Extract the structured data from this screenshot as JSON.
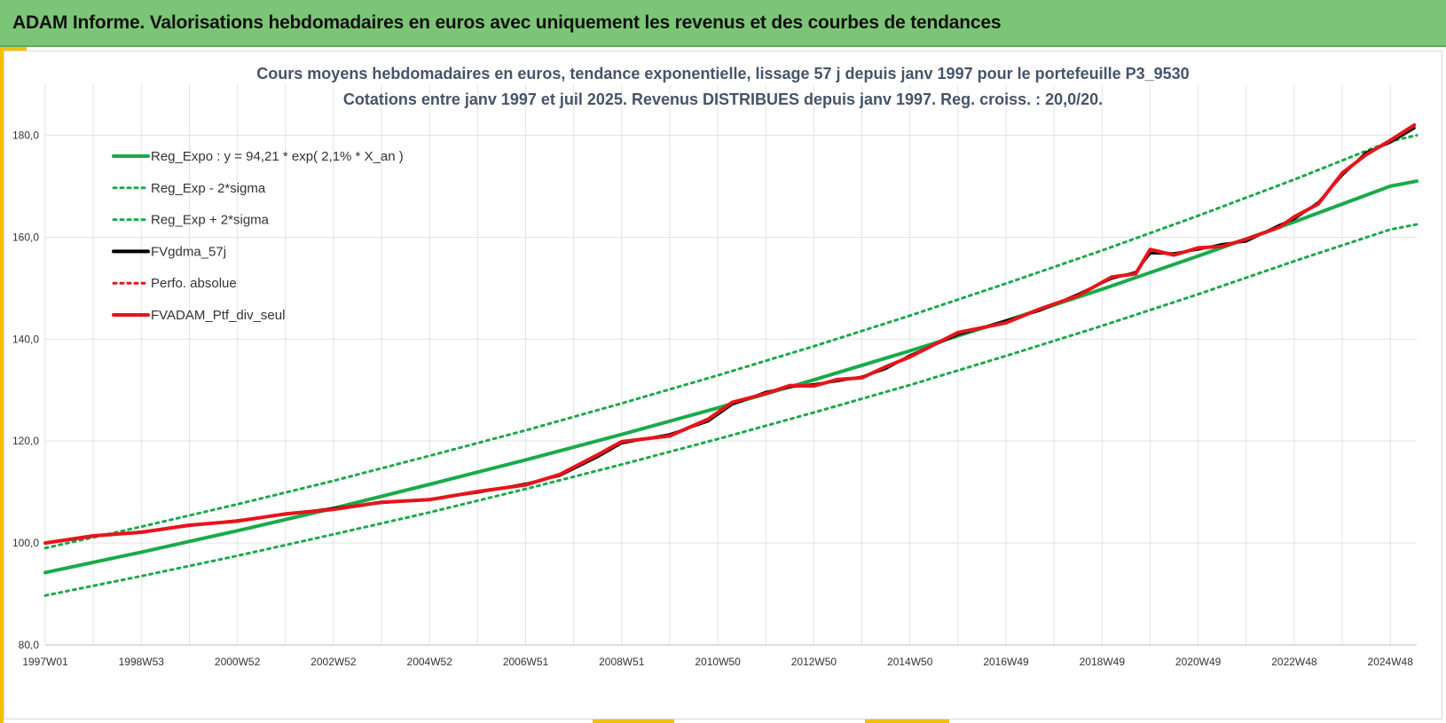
{
  "header": {
    "title": "ADAM Informe. Valorisations hebdomadaires en euros avec uniquement les revenus et des courbes de tendances"
  },
  "colors": {
    "header_bg": "#7cc576",
    "accent": "#f2c000",
    "trend": "#1aaa4a",
    "smooth": "#000000",
    "portfolio": "#e8141b"
  },
  "chart_data": {
    "type": "line",
    "title_lines": [
      "Cours moyens hebdomadaires  en euros, tendance exponentielle, lissage 57 j depuis janv 1997 pour le portefeuille P3_9530",
      "Cotations entre janv 1997 et juil 2025. Revenus DISTRIBUES depuis janv 1997. Reg. croiss. : 20,0/20."
    ],
    "x_tick_labels": [
      "1997W01",
      "1998W53",
      "2000W52",
      "2002W52",
      "2004W52",
      "2006W51",
      "2008W51",
      "2010W50",
      "2012W50",
      "2014W50",
      "2016W49",
      "2018W49",
      "2020W49",
      "2022W48",
      "2024W48"
    ],
    "x_tick_years": [
      1997.0,
      1999.0,
      2001.0,
      2003.0,
      2005.0,
      2007.0,
      2009.0,
      2011.0,
      2013.0,
      2015.0,
      2017.0,
      2019.0,
      2021.0,
      2023.0,
      2025.0
    ],
    "xlim": [
      1997.0,
      2025.55
    ],
    "y_tick_labels": [
      "80,0",
      "100,0",
      "120,0",
      "140,0",
      "160,0",
      "180,0"
    ],
    "y_ticks": [
      80,
      100,
      120,
      140,
      160,
      180
    ],
    "ylim": [
      80,
      190
    ],
    "grid": true,
    "legend_position": "top-left",
    "legend": [
      {
        "label": "Reg_Expo : y = 94,21 * exp( 2,1% *  X_an )",
        "style": "solid",
        "color": "#1aaa4a"
      },
      {
        "label": "Reg_Exp - 2*sigma",
        "style": "dotted",
        "color": "#1aaa4a"
      },
      {
        "label": "Reg_Exp + 2*sigma",
        "style": "dotted",
        "color": "#1aaa4a"
      },
      {
        "label": "FVgdma_57j",
        "style": "solid",
        "color": "#000000"
      },
      {
        "label": "Perfo. absolue",
        "style": "dotted",
        "color": "#e8141b"
      },
      {
        "label": "FVADAM_Ptf_div_seul",
        "style": "solid",
        "color": "#e8141b"
      }
    ],
    "series": [
      {
        "name": "Reg_Expo : y = 94,21 * exp( 2,1% *  X_an )",
        "x": [
          1997,
          1999,
          2001,
          2003,
          2005,
          2007,
          2009,
          2011,
          2013,
          2015,
          2017,
          2019,
          2021,
          2023,
          2025,
          2025.55
        ],
        "values": [
          94.2,
          98.2,
          102.4,
          106.8,
          111.5,
          116.3,
          121.3,
          126.5,
          132.0,
          137.7,
          143.6,
          149.8,
          156.3,
          163.0,
          170.0,
          171.0
        ]
      },
      {
        "name": "Reg_Exp - 2*sigma",
        "x": [
          1997,
          1999,
          2001,
          2003,
          2005,
          2007,
          2009,
          2011,
          2013,
          2015,
          2017,
          2019,
          2021,
          2023,
          2025,
          2025.55
        ],
        "values": [
          89.7,
          93.5,
          97.5,
          101.7,
          106.0,
          110.6,
          115.4,
          120.4,
          125.6,
          131.0,
          136.7,
          142.6,
          148.8,
          155.3,
          161.5,
          162.5
        ]
      },
      {
        "name": "Reg_Exp + 2*sigma",
        "x": [
          1997,
          1999,
          2001,
          2003,
          2005,
          2007,
          2009,
          2011,
          2013,
          2015,
          2017,
          2019,
          2021,
          2023,
          2025,
          2025.55
        ],
        "values": [
          99.0,
          103.2,
          107.6,
          112.2,
          117.1,
          122.1,
          127.4,
          132.9,
          138.6,
          144.6,
          150.9,
          157.4,
          164.2,
          171.3,
          178.8,
          180.0
        ]
      },
      {
        "name": "FVgdma_57j",
        "x": [
          1997,
          1998,
          1999,
          2000,
          2001,
          2002,
          2003,
          2004,
          2005,
          2006,
          2007,
          2007.7,
          2008.5,
          2009,
          2010,
          2010.8,
          2011.3,
          2012,
          2012.5,
          2013,
          2013.5,
          2014,
          2014.5,
          2015,
          2016,
          2017,
          2017.7,
          2018.5,
          2019.2,
          2019.7,
          2020,
          2020.5,
          2021,
          2021.5,
          2022,
          2022.7,
          2023,
          2023.5,
          2024,
          2024.5,
          2025,
          2025.5
        ],
        "values": [
          100.0,
          101.3,
          102.2,
          103.4,
          104.4,
          105.6,
          106.8,
          107.9,
          108.6,
          109.9,
          111.6,
          113.2,
          116.9,
          119.6,
          121.3,
          123.9,
          127.2,
          129.6,
          130.6,
          131.1,
          131.8,
          132.6,
          134.2,
          136.8,
          140.9,
          143.6,
          145.6,
          148.8,
          151.9,
          153.1,
          156.9,
          156.8,
          157.6,
          158.6,
          159.2,
          162.4,
          163.6,
          166.8,
          172.2,
          176.6,
          178.6,
          181.4
        ]
      },
      {
        "name": "FVADAM_Ptf_div_seul",
        "x": [
          1997,
          1998,
          1999,
          2000,
          2001,
          2002,
          2003,
          2004,
          2005,
          2006,
          2007,
          2007.7,
          2008.5,
          2009,
          2010,
          2010.8,
          2011.3,
          2012,
          2012.5,
          2013,
          2013.5,
          2014,
          2014.5,
          2015,
          2016,
          2017,
          2017.7,
          2018.5,
          2019.2,
          2019.7,
          2020,
          2020.5,
          2021,
          2021.5,
          2022,
          2022.7,
          2023,
          2023.5,
          2024,
          2024.5,
          2025,
          2025.5
        ],
        "values": [
          100.0,
          101.4,
          102.1,
          103.5,
          104.3,
          105.7,
          106.6,
          108.0,
          108.5,
          110.1,
          111.4,
          113.4,
          117.3,
          119.9,
          121.0,
          124.3,
          127.6,
          129.3,
          130.9,
          130.8,
          132.1,
          132.4,
          134.6,
          136.5,
          141.3,
          143.2,
          145.9,
          148.5,
          152.2,
          152.8,
          157.6,
          156.5,
          157.9,
          158.2,
          159.6,
          162.0,
          164.0,
          166.5,
          172.6,
          176.2,
          179.0,
          182.0
        ]
      }
    ]
  }
}
